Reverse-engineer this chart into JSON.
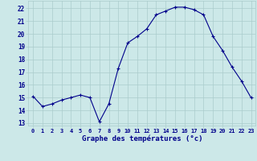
{
  "hours": [
    0,
    1,
    2,
    3,
    4,
    5,
    6,
    7,
    8,
    9,
    10,
    11,
    12,
    13,
    14,
    15,
    16,
    17,
    18,
    19,
    20,
    21,
    22,
    23
  ],
  "temperatures": [
    15.1,
    14.3,
    14.5,
    14.8,
    15.0,
    15.2,
    15.0,
    13.1,
    14.5,
    17.3,
    19.3,
    19.8,
    20.4,
    21.5,
    21.8,
    22.1,
    22.1,
    21.9,
    21.5,
    19.8,
    18.7,
    17.4,
    16.3,
    15.0
  ],
  "line_color": "#00008b",
  "marker": "+",
  "marker_size": 3,
  "marker_lw": 0.8,
  "line_width": 0.8,
  "bg_color": "#cce8e8",
  "grid_color": "#aacccc",
  "xlabel": "Graphe des températures (°c)",
  "ylabel_ticks": [
    13,
    14,
    15,
    16,
    17,
    18,
    19,
    20,
    21,
    22
  ],
  "ylim": [
    12.8,
    22.6
  ],
  "xlim": [
    -0.5,
    23.5
  ],
  "tick_label_color": "#00008b",
  "xlabel_color": "#00008b",
  "bottom_bar_color": "#3333bb",
  "figsize": [
    3.2,
    2.0
  ],
  "dpi": 100
}
